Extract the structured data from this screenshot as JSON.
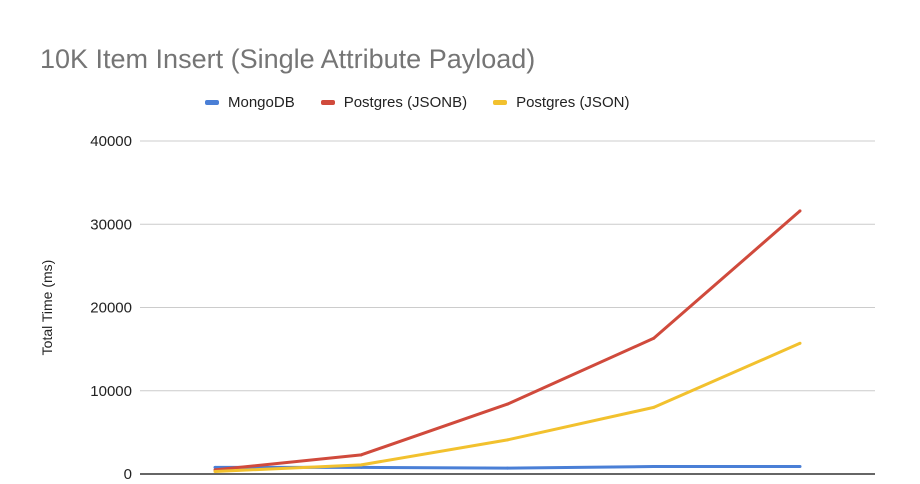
{
  "chart_data": {
    "type": "line",
    "title": "10K Item Insert (Single Attribute Payload)",
    "xlabel": "",
    "ylabel": "Total Time (ms)",
    "ylim": [
      0,
      40000
    ],
    "yticks": [
      "0",
      "10000",
      "20000",
      "30000",
      "40000"
    ],
    "categories": [
      "",
      "",
      "",
      "",
      ""
    ],
    "grid": true,
    "legend_position": "top",
    "series": [
      {
        "name": "MongoDB",
        "color": "#4a7fd6",
        "values": [
          800,
          800,
          700,
          900,
          900
        ]
      },
      {
        "name": "Postgres (JSONB)",
        "color": "#d04a3c",
        "values": [
          500,
          2300,
          8400,
          16300,
          31600
        ]
      },
      {
        "name": "Postgres (JSON)",
        "color": "#f2c12e",
        "values": [
          300,
          1100,
          4100,
          8000,
          15700
        ]
      }
    ]
  }
}
